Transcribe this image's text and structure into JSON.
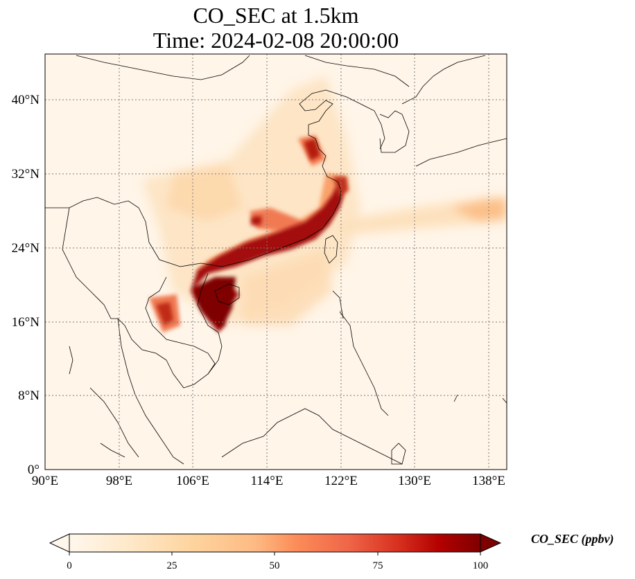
{
  "title": {
    "line1": "CO_SEC at 1.5km",
    "line2": "Time: 2024-02-08 20:00:00"
  },
  "map": {
    "lon_range": [
      90,
      140
    ],
    "lat_range": [
      0,
      45
    ],
    "lon_ticks": [
      "90°E",
      "98°E",
      "106°E",
      "114°E",
      "122°E",
      "130°E",
      "138°E"
    ],
    "lat_ticks": [
      "0°",
      "8°N",
      "16°N",
      "24°N",
      "32°N",
      "40°N"
    ],
    "gridlines": "dotted",
    "colormap": "OrRd",
    "colors": {
      "low": "#fff7ec",
      "mid": "#fdbb84",
      "high": "#ef6548",
      "max": "#7f0000"
    }
  },
  "colorbar": {
    "label": "CO_SEC (ppbv)",
    "ticks": [
      "0",
      "25",
      "50",
      "75",
      "100"
    ],
    "range": [
      0,
      100
    ],
    "extend": "both"
  }
}
